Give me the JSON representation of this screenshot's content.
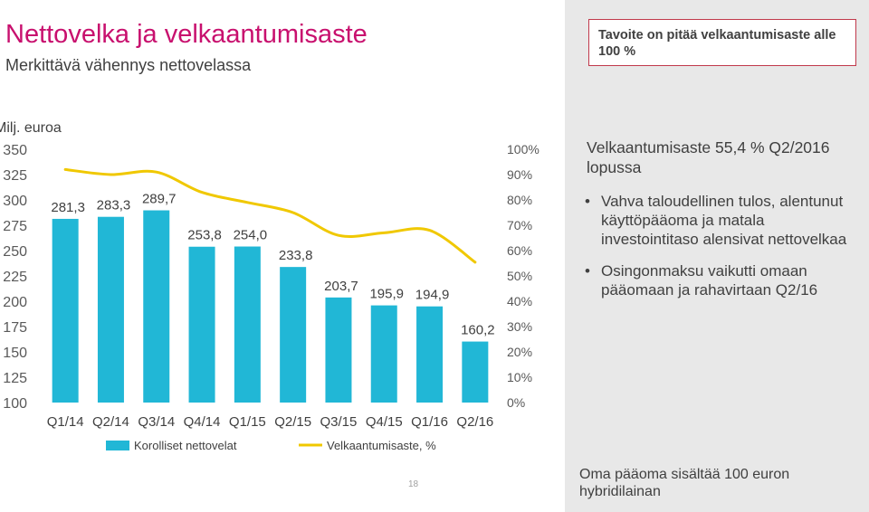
{
  "slide": {
    "title": "Nettovelka ja velkaantumisaste",
    "subtitle": "Merkittävä vähennys nettovelassa",
    "target_note": "Tavoite on pitää velkaantumisaste alle 100 %",
    "ratio_heading": "Velkaantumisaste 55,4 % Q2/2016 lopussa",
    "bullets": [
      "Vahva taloudellinen tulos, alentunut käyttöpääoma ja matala investointitaso alensivat nettovelkaa",
      "Osingonmaksu vaikutti omaan pääomaan ja rahavirtaan Q2/16"
    ],
    "footnote": "Oma pääoma sisältää 100 euron hybridilainan",
    "page_number": "18",
    "accent_color": "#c8106e"
  },
  "chart_data": {
    "type": "bar",
    "unit_label": "Milj. euroa",
    "categories": [
      "Q1/14",
      "Q2/14",
      "Q3/14",
      "Q4/14",
      "Q1/15",
      "Q2/15",
      "Q3/15",
      "Q4/15",
      "Q1/16",
      "Q2/16"
    ],
    "series": [
      {
        "name": "Korolliset nettovelat",
        "type": "bar",
        "axis": "left",
        "color": "#21b7d6",
        "values": [
          281.3,
          283.3,
          289.7,
          253.8,
          254.0,
          233.8,
          203.7,
          195.9,
          194.9,
          160.2
        ],
        "value_labels": [
          "281,3",
          "283,3",
          "289,7",
          "253,8",
          "254,0",
          "233,8",
          "203,7",
          "195,9",
          "194,9",
          "160,2"
        ]
      },
      {
        "name": "Velkaantumisaste, %",
        "type": "line",
        "axis": "right",
        "color": "#f0c800",
        "values": [
          92,
          90,
          91,
          83,
          79,
          75,
          66,
          67,
          68,
          55.4
        ]
      }
    ],
    "ylim": [
      100,
      350
    ],
    "yticks": [
      "350",
      "325",
      "300",
      "275",
      "250",
      "225",
      "200",
      "175",
      "150",
      "125",
      "100"
    ],
    "y2lim": [
      0,
      100
    ],
    "y2ticks": [
      "100%",
      "90%",
      "80%",
      "70%",
      "60%",
      "50%",
      "40%",
      "30%",
      "20%",
      "10%",
      "0%"
    ],
    "grid": false,
    "legend_position": "bottom"
  }
}
